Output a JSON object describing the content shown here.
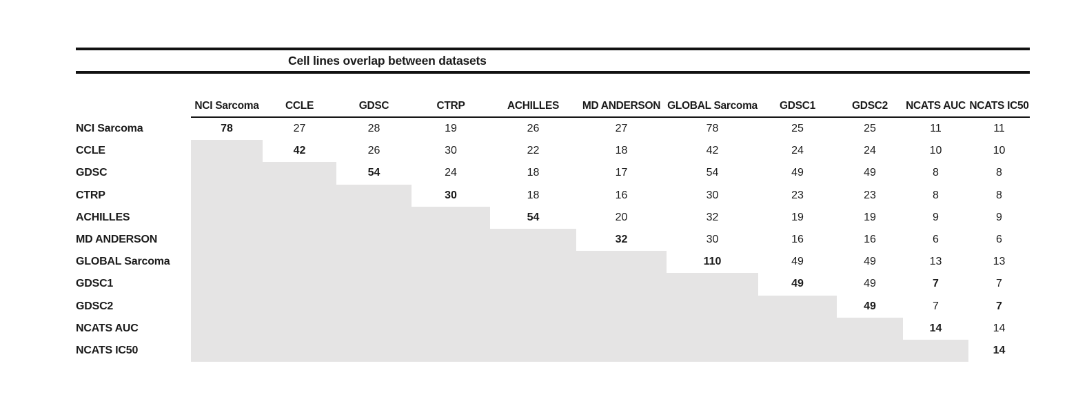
{
  "page": {
    "background": "#ffffff",
    "text_color": "#1b1b1b",
    "rule_color": "#121212",
    "shaded_cell_color": "#e5e4e4"
  },
  "chart_data": {
    "type": "table",
    "title": "Cell lines overlap between datasets",
    "columns": [
      "NCI Sarcoma",
      "CCLE",
      "GDSC",
      "CTRP",
      "ACHILLES",
      "MD ANDERSON",
      "GLOBAL Sarcoma",
      "GDSC1",
      "GDSC2",
      "NCATS AUC",
      "NCATS IC50"
    ],
    "rows": [
      {
        "label": "NCI Sarcoma",
        "values": [
          78,
          27,
          28,
          19,
          26,
          27,
          78,
          25,
          25,
          11,
          11
        ]
      },
      {
        "label": "CCLE",
        "values": [
          null,
          42,
          26,
          30,
          22,
          18,
          42,
          24,
          24,
          10,
          10
        ]
      },
      {
        "label": "GDSC",
        "values": [
          null,
          null,
          54,
          24,
          18,
          17,
          54,
          49,
          49,
          8,
          8
        ]
      },
      {
        "label": "CTRP",
        "values": [
          null,
          null,
          null,
          30,
          18,
          16,
          30,
          23,
          23,
          8,
          8
        ]
      },
      {
        "label": "ACHILLES",
        "values": [
          null,
          null,
          null,
          null,
          54,
          20,
          32,
          19,
          19,
          9,
          9
        ]
      },
      {
        "label": "MD ANDERSON",
        "values": [
          null,
          null,
          null,
          null,
          null,
          32,
          30,
          16,
          16,
          6,
          6
        ]
      },
      {
        "label": "GLOBAL Sarcoma",
        "values": [
          null,
          null,
          null,
          null,
          null,
          null,
          110,
          49,
          49,
          13,
          13
        ]
      },
      {
        "label": "GDSC1",
        "values": [
          null,
          null,
          null,
          null,
          null,
          null,
          null,
          49,
          49,
          7,
          7
        ]
      },
      {
        "label": "GDSC2",
        "values": [
          null,
          null,
          null,
          null,
          null,
          null,
          null,
          null,
          49,
          7,
          7
        ]
      },
      {
        "label": "NCATS AUC",
        "values": [
          null,
          null,
          null,
          null,
          null,
          null,
          null,
          null,
          null,
          14,
          14
        ]
      },
      {
        "label": "NCATS IC50",
        "values": [
          null,
          null,
          null,
          null,
          null,
          null,
          null,
          null,
          null,
          null,
          14
        ]
      }
    ],
    "bold_cells": [
      [
        0,
        0
      ],
      [
        1,
        1
      ],
      [
        2,
        2
      ],
      [
        3,
        3
      ],
      [
        4,
        4
      ],
      [
        5,
        5
      ],
      [
        6,
        6
      ],
      [
        7,
        7
      ],
      [
        7,
        9
      ],
      [
        8,
        8
      ],
      [
        8,
        10
      ],
      [
        9,
        9
      ],
      [
        10,
        10
      ]
    ],
    "layout": {
      "shaded_region": "lower-triangle-below-diagonal",
      "grid": "off",
      "header_rule": "single-thin-under-data-columns",
      "title_rules": "thick-above-and-below"
    }
  }
}
